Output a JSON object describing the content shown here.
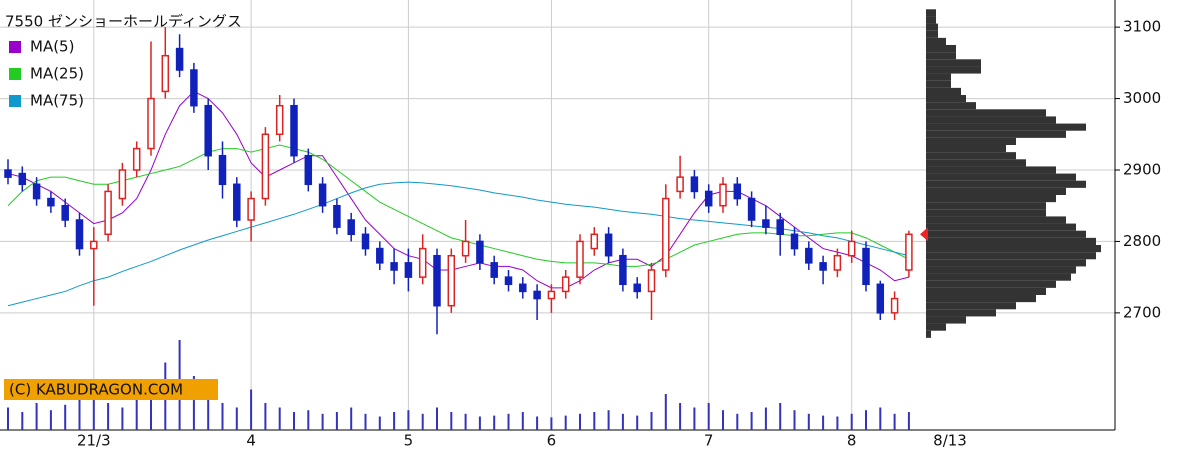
{
  "chart_data": {
    "type": "candlestick",
    "title": "7550 ゼンショーホールディングス",
    "copyright": "(C) KABUDRAGON.COM",
    "last_date": "8/13",
    "categories": [
      null,
      null,
      null,
      null,
      null,
      null,
      "21/3",
      null,
      null,
      null,
      null,
      null,
      null,
      null,
      null,
      null,
      null,
      "4",
      null,
      null,
      null,
      null,
      null,
      null,
      null,
      null,
      null,
      null,
      "5",
      null,
      null,
      null,
      null,
      null,
      null,
      null,
      null,
      null,
      "6",
      null,
      null,
      null,
      null,
      null,
      null,
      null,
      null,
      null,
      null,
      "7",
      null,
      null,
      null,
      null,
      null,
      null,
      null,
      null,
      null,
      "8",
      null,
      null,
      null,
      null
    ],
    "open": [
      2900,
      2895,
      2880,
      2860,
      2850,
      2830,
      2790,
      2810,
      2860,
      2900,
      2930,
      3010,
      3070,
      3040,
      2990,
      2920,
      2880,
      2830,
      2860,
      2950,
      2990,
      2920,
      2880,
      2850,
      2830,
      2810,
      2790,
      2770,
      2770,
      2750,
      2780,
      2710,
      2780,
      2800,
      2770,
      2750,
      2740,
      2730,
      2720,
      2730,
      2750,
      2790,
      2810,
      2780,
      2740,
      2730,
      2760,
      2870,
      2890,
      2870,
      2850,
      2880,
      2860,
      2830,
      2830,
      2810,
      2790,
      2770,
      2760,
      2780,
      2790,
      2740,
      2700,
      2760
    ],
    "high": [
      2915,
      2905,
      2890,
      2870,
      2860,
      2840,
      2820,
      2880,
      2910,
      2940,
      3080,
      3100,
      3090,
      3050,
      3000,
      2940,
      2890,
      2870,
      2960,
      3005,
      3000,
      2930,
      2890,
      2860,
      2840,
      2820,
      2800,
      2790,
      2790,
      2810,
      2790,
      2790,
      2830,
      2810,
      2780,
      2760,
      2750,
      2740,
      2740,
      2760,
      2810,
      2820,
      2820,
      2790,
      2750,
      2770,
      2880,
      2920,
      2900,
      2880,
      2890,
      2890,
      2870,
      2850,
      2840,
      2820,
      2800,
      2780,
      2790,
      2815,
      2800,
      2745,
      2730,
      2815
    ],
    "low": [
      2880,
      2870,
      2850,
      2840,
      2820,
      2780,
      2710,
      2800,
      2850,
      2890,
      2920,
      3000,
      3030,
      2980,
      2900,
      2860,
      2820,
      2800,
      2850,
      2940,
      2910,
      2870,
      2840,
      2810,
      2800,
      2780,
      2760,
      2740,
      2730,
      2740,
      2670,
      2700,
      2770,
      2760,
      2740,
      2730,
      2720,
      2690,
      2700,
      2720,
      2740,
      2780,
      2770,
      2730,
      2720,
      2690,
      2750,
      2860,
      2860,
      2840,
      2840,
      2850,
      2820,
      2810,
      2780,
      2780,
      2760,
      2740,
      2750,
      2770,
      2730,
      2690,
      2690,
      2750
    ],
    "close": [
      2890,
      2880,
      2860,
      2850,
      2830,
      2790,
      2800,
      2870,
      2900,
      2930,
      3000,
      3060,
      3040,
      2990,
      2920,
      2880,
      2830,
      2860,
      2950,
      2990,
      2920,
      2880,
      2850,
      2820,
      2810,
      2790,
      2770,
      2760,
      2750,
      2790,
      2710,
      2780,
      2800,
      2770,
      2750,
      2740,
      2730,
      2720,
      2730,
      2750,
      2800,
      2810,
      2780,
      2740,
      2730,
      2760,
      2860,
      2890,
      2870,
      2850,
      2880,
      2860,
      2830,
      2820,
      2810,
      2790,
      2770,
      2760,
      2780,
      2800,
      2740,
      2700,
      2720,
      2810
    ],
    "up_color": "#dd2222",
    "down_color": "#1122bb",
    "series": [
      {
        "name": "MA(5)",
        "color": "#9900cc",
        "values": [
          2895,
          2890,
          2880,
          2870,
          2855,
          2840,
          2825,
          2830,
          2840,
          2860,
          2900,
          2950,
          2990,
          3010,
          3000,
          2980,
          2950,
          2910,
          2890,
          2900,
          2910,
          2920,
          2920,
          2890,
          2860,
          2830,
          2810,
          2790,
          2780,
          2775,
          2760,
          2760,
          2765,
          2770,
          2765,
          2765,
          2760,
          2745,
          2735,
          2735,
          2745,
          2760,
          2770,
          2775,
          2775,
          2765,
          2780,
          2810,
          2840,
          2865,
          2870,
          2870,
          2860,
          2850,
          2835,
          2820,
          2805,
          2790,
          2785,
          2780,
          2770,
          2760,
          2745,
          2750
        ]
      },
      {
        "name": "MA(25)",
        "color": "#22cc22",
        "values": [
          2850,
          2870,
          2885,
          2890,
          2890,
          2885,
          2880,
          2880,
          2885,
          2890,
          2895,
          2900,
          2905,
          2915,
          2925,
          2930,
          2930,
          2925,
          2930,
          2935,
          2930,
          2925,
          2915,
          2900,
          2885,
          2870,
          2855,
          2845,
          2835,
          2825,
          2815,
          2805,
          2800,
          2795,
          2790,
          2785,
          2780,
          2775,
          2772,
          2770,
          2770,
          2770,
          2768,
          2765,
          2765,
          2768,
          2775,
          2785,
          2795,
          2800,
          2805,
          2810,
          2812,
          2812,
          2810,
          2808,
          2808,
          2810,
          2812,
          2812,
          2805,
          2795,
          2785,
          2775
        ]
      },
      {
        "name": "MA(75)",
        "color": "#1199cc",
        "values": [
          2710,
          2715,
          2720,
          2725,
          2730,
          2738,
          2745,
          2750,
          2758,
          2765,
          2772,
          2780,
          2788,
          2795,
          2802,
          2808,
          2814,
          2820,
          2826,
          2832,
          2838,
          2845,
          2852,
          2860,
          2868,
          2875,
          2880,
          2882,
          2883,
          2882,
          2880,
          2878,
          2875,
          2872,
          2868,
          2865,
          2862,
          2858,
          2855,
          2852,
          2850,
          2848,
          2845,
          2842,
          2840,
          2838,
          2835,
          2832,
          2830,
          2828,
          2826,
          2824,
          2822,
          2820,
          2818,
          2815,
          2812,
          2808,
          2805,
          2800,
          2795,
          2790,
          2785,
          2780
        ]
      }
    ],
    "volume": {
      "color": "#3333bb",
      "values": [
        25,
        20,
        30,
        22,
        28,
        35,
        40,
        30,
        25,
        35,
        45,
        75,
        100,
        60,
        35,
        30,
        25,
        45,
        30,
        25,
        20,
        22,
        18,
        20,
        25,
        18,
        15,
        20,
        22,
        18,
        25,
        20,
        18,
        15,
        16,
        18,
        20,
        15,
        14,
        16,
        18,
        20,
        22,
        18,
        16,
        20,
        40,
        30,
        25,
        30,
        22,
        18,
        20,
        25,
        30,
        22,
        18,
        16,
        15,
        18,
        22,
        25,
        18,
        20
      ]
    },
    "volume_profile": {
      "color": "#333333",
      "prices": [
        3120,
        3110,
        3100,
        3090,
        3080,
        3070,
        3060,
        3050,
        3040,
        3030,
        3020,
        3010,
        3000,
        2990,
        2980,
        2970,
        2960,
        2950,
        2940,
        2930,
        2920,
        2910,
        2900,
        2890,
        2880,
        2870,
        2860,
        2850,
        2840,
        2830,
        2820,
        2810,
        2800,
        2790,
        2780,
        2770,
        2760,
        2750,
        2740,
        2730,
        2720,
        2710,
        2700,
        2690,
        2680,
        2670
      ],
      "values": [
        10,
        10,
        12,
        12,
        20,
        30,
        30,
        55,
        55,
        25,
        25,
        35,
        40,
        50,
        120,
        130,
        160,
        140,
        90,
        80,
        90,
        100,
        130,
        150,
        160,
        140,
        130,
        120,
        120,
        140,
        150,
        160,
        170,
        175,
        170,
        160,
        150,
        145,
        130,
        120,
        110,
        90,
        70,
        40,
        20,
        5
      ]
    },
    "ylim": [
      2536,
      3138
    ],
    "yticks": [
      2700,
      2800,
      2900,
      3000,
      3100
    ],
    "grid": true
  }
}
